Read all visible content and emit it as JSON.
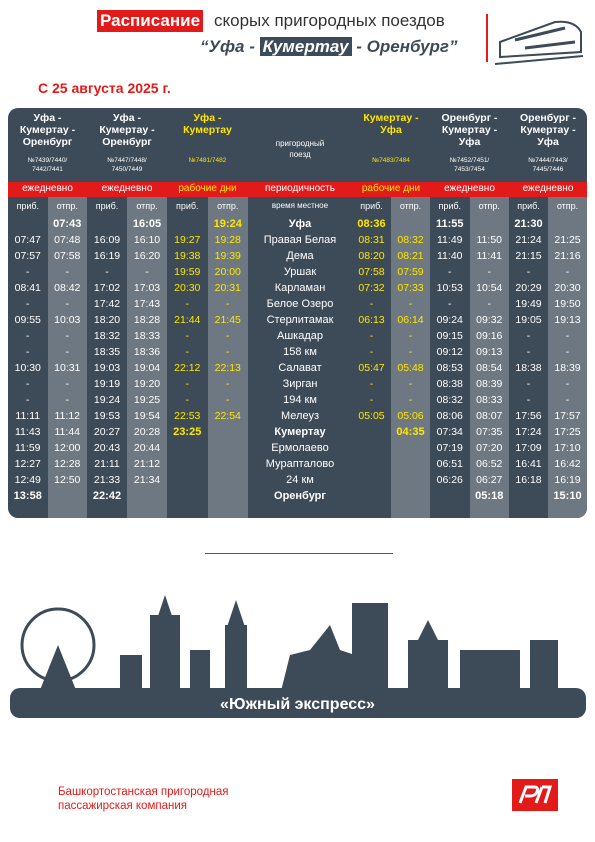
{
  "header": {
    "title_highlight": "Расписание",
    "title_rest": "скорых пригородных поездов",
    "subtitle_start": "“Уфа - ",
    "subtitle_highlight": "Кумертау",
    "subtitle_end": " - Оренбург”"
  },
  "date": "С 25 августа 2025 г.",
  "table": {
    "center_header": "пригородный поезд",
    "periodicity_label": "периодичность",
    "time_label": "время местное",
    "arrival": "приб.",
    "departure": "отпр.",
    "stations": [
      "Уфа",
      "Правая Белая",
      "Дема",
      "Уршак",
      "Карламан",
      "Белое Озеро",
      "Стерлитамак",
      "Ашкадар",
      "158 км",
      "Салават",
      "Зирган",
      "194 км",
      "Мелеуз",
      "Кумертау",
      "Ермолаево",
      "Мурапталово",
      "24 км",
      "Оренбург"
    ],
    "trains": [
      {
        "route": "Уфа - Кумертау - Оренбург",
        "numbers": "№7439/7440/ 7442/7441",
        "periodicity": "ежедневно",
        "color": "#ffffff",
        "times": [
          [
            null,
            "07:43"
          ],
          [
            "07:47",
            "07:48"
          ],
          [
            "07:57",
            "07:58"
          ],
          [
            "-",
            "-"
          ],
          [
            "08:41",
            "08:42"
          ],
          [
            "-",
            "-"
          ],
          [
            "09:55",
            "10:03"
          ],
          [
            "-",
            "-"
          ],
          [
            "-",
            "-"
          ],
          [
            "10:30",
            "10:31"
          ],
          [
            "-",
            "-"
          ],
          [
            "-",
            "-"
          ],
          [
            "11:11",
            "11:12"
          ],
          [
            "11:43",
            "11:44"
          ],
          [
            "11:59",
            "12:00"
          ],
          [
            "12:27",
            "12:28"
          ],
          [
            "12:49",
            "12:50"
          ],
          [
            "13:58",
            null
          ]
        ]
      },
      {
        "route": "Уфа - Кумертау - Оренбург",
        "numbers": "№7447/7448/ 7450/7449",
        "periodicity": "ежедневно",
        "color": "#ffffff",
        "times": [
          [
            null,
            "16:05"
          ],
          [
            "16:09",
            "16:10"
          ],
          [
            "16:19",
            "16:20"
          ],
          [
            "-",
            "-"
          ],
          [
            "17:02",
            "17:03"
          ],
          [
            "17:42",
            "17:43"
          ],
          [
            "18:20",
            "18:28"
          ],
          [
            "18:32",
            "18:33"
          ],
          [
            "18:35",
            "18:36"
          ],
          [
            "19:03",
            "19:04"
          ],
          [
            "19:19",
            "19:20"
          ],
          [
            "19:24",
            "19:25"
          ],
          [
            "19:53",
            "19:54"
          ],
          [
            "20:27",
            "20:28"
          ],
          [
            "20:43",
            "20:44"
          ],
          [
            "21:11",
            "21:12"
          ],
          [
            "21:33",
            "21:34"
          ],
          [
            "22:42",
            null
          ]
        ]
      },
      {
        "route": "Уфа - Кумертау",
        "numbers": "№7481/7482",
        "periodicity": "рабочие дни",
        "color": "#ffe600",
        "times": [
          [
            null,
            "19:24"
          ],
          [
            "19:27",
            "19:28"
          ],
          [
            "19:38",
            "19:39"
          ],
          [
            "19:59",
            "20:00"
          ],
          [
            "20:30",
            "20:31"
          ],
          [
            "-",
            "-"
          ],
          [
            "21:44",
            "21:45"
          ],
          [
            "-",
            "-"
          ],
          [
            "-",
            "-"
          ],
          [
            "22:12",
            "22:13"
          ],
          [
            "-",
            "-"
          ],
          [
            "-",
            "-"
          ],
          [
            "22:53",
            "22:54"
          ],
          [
            "23:25",
            null
          ]
        ]
      },
      {
        "route": "Кумертау - Уфа",
        "numbers": "№7483/7484",
        "periodicity": "рабочие дни",
        "color": "#ffe600",
        "times": [
          [
            "08:36",
            null
          ],
          [
            "08:31",
            "08:32"
          ],
          [
            "08:20",
            "08:21"
          ],
          [
            "07:58",
            "07:59"
          ],
          [
            "07:32",
            "07:33"
          ],
          [
            "-",
            "-"
          ],
          [
            "06:13",
            "06:14"
          ],
          [
            "-",
            "-"
          ],
          [
            "-",
            "-"
          ],
          [
            "05:47",
            "05:48"
          ],
          [
            "-",
            "-"
          ],
          [
            "-",
            "-"
          ],
          [
            "05:05",
            "05:06"
          ],
          [
            null,
            "04:35"
          ]
        ]
      },
      {
        "route": "Оренбург - Кумертау - Уфа",
        "numbers": "№7452/7451/ 7453/7454",
        "periodicity": "ежедневно",
        "color": "#ffffff",
        "times": [
          [
            "11:55",
            null
          ],
          [
            "11:49",
            "11:50"
          ],
          [
            "11:40",
            "11:41"
          ],
          [
            "-",
            "-"
          ],
          [
            "10:53",
            "10:54"
          ],
          [
            "-",
            "-"
          ],
          [
            "09:24",
            "09:32"
          ],
          [
            "09:15",
            "09:16"
          ],
          [
            "09:12",
            "09:13"
          ],
          [
            "08:53",
            "08:54"
          ],
          [
            "08:38",
            "08:39"
          ],
          [
            "08:32",
            "08:33"
          ],
          [
            "08:06",
            "08:07"
          ],
          [
            "07:34",
            "07:35"
          ],
          [
            "07:19",
            "07:20"
          ],
          [
            "06:51",
            "06:52"
          ],
          [
            "06:26",
            "06:27"
          ],
          [
            null,
            "05:18"
          ]
        ]
      },
      {
        "route": "Оренбург - Кумертау - Уфа",
        "numbers": "№7444/7443/ 7445/7446",
        "periodicity": "ежедневно",
        "color": "#ffffff",
        "times": [
          [
            "21:30",
            null
          ],
          [
            "21:24",
            "21:25"
          ],
          [
            "21:15",
            "21:16"
          ],
          [
            "-",
            "-"
          ],
          [
            "20:29",
            "20:30"
          ],
          [
            "19:49",
            "19:50"
          ],
          [
            "19:05",
            "19:13"
          ],
          [
            "-",
            "-"
          ],
          [
            "-",
            "-"
          ],
          [
            "18:38",
            "18:39"
          ],
          [
            "-",
            "-"
          ],
          [
            "-",
            "-"
          ],
          [
            "17:56",
            "17:57"
          ],
          [
            "17:24",
            "17:25"
          ],
          [
            "17:09",
            "17:10"
          ],
          [
            "16:41",
            "16:42"
          ],
          [
            "16:18",
            "16:19"
          ],
          [
            null,
            "15:10"
          ]
        ]
      }
    ]
  },
  "banner": "«Южный экспресс»",
  "company": [
    "Башкортостанская пригородная",
    "пассажирская компания"
  ]
}
